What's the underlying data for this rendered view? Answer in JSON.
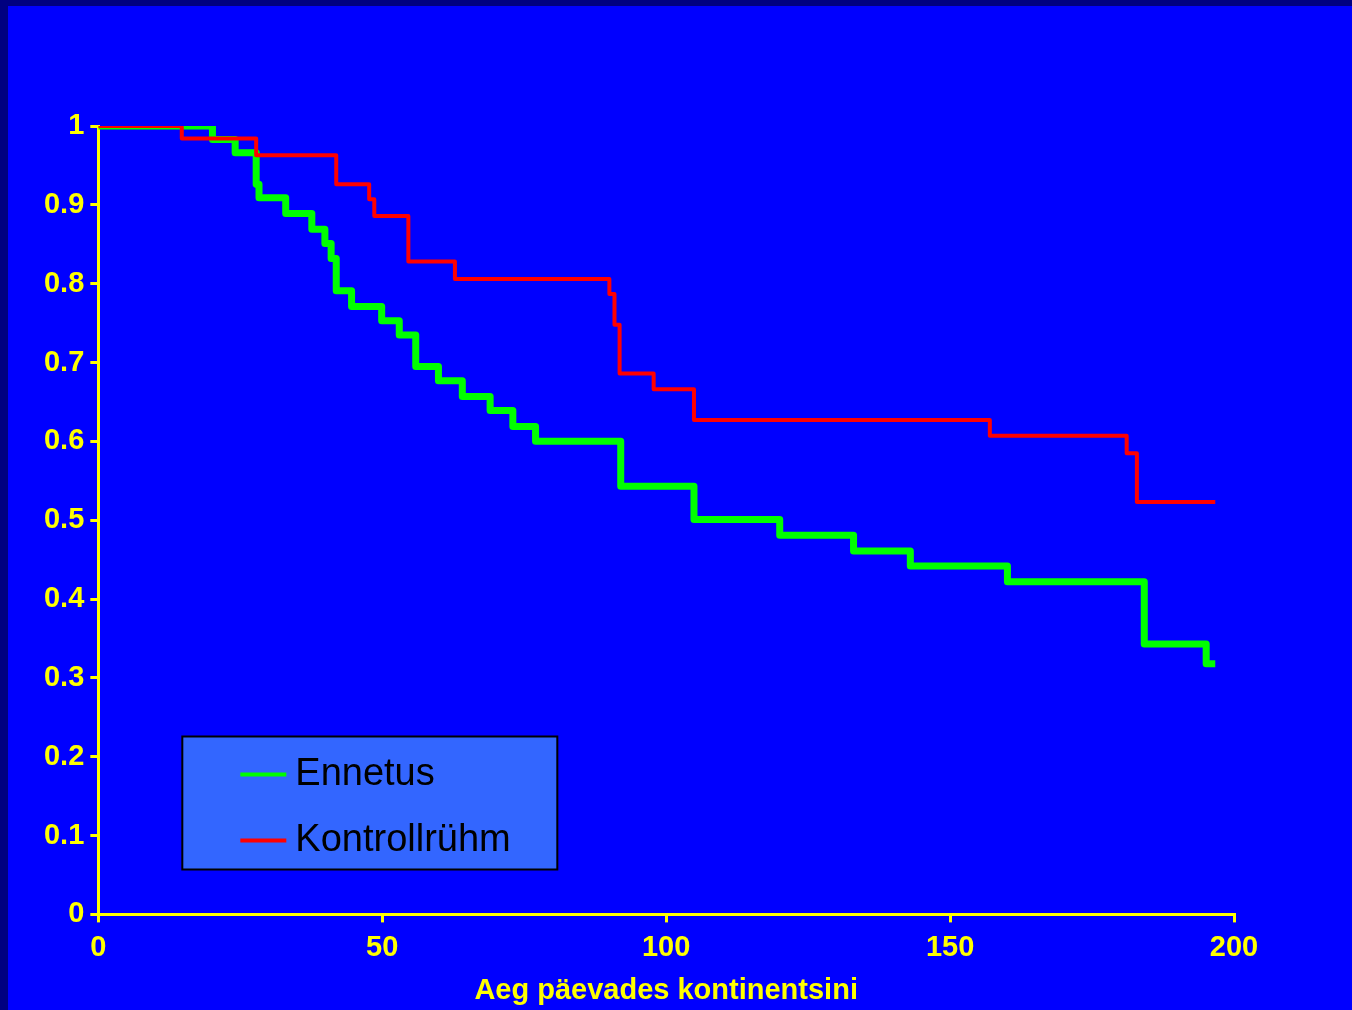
{
  "chart_data": {
    "type": "step",
    "xlabel": "Aeg päevades kontinentsini",
    "xlim": [
      0,
      200
    ],
    "xticks": [
      0,
      50,
      100,
      150,
      200
    ],
    "ylim": [
      0,
      1
    ],
    "yticks": [
      0,
      0.1,
      0.2,
      0.3,
      0.4,
      0.5,
      0.6,
      0.7,
      0.8,
      0.9,
      1
    ],
    "grid": false,
    "legend": "bottom left",
    "marker": "none",
    "line_style": "solid",
    "series": [
      {
        "name": "Ennetus",
        "color": "#00ff00",
        "x": [
          0,
          20.1,
          24.1,
          27.8,
          28.3,
          33,
          37.6,
          39.9,
          41,
          41.9,
          44.6,
          49.9,
          53,
          55.9,
          59.9,
          64.1,
          69,
          73,
          77,
          92,
          104.9,
          120,
          133,
          143,
          160.1,
          184.2,
          195.1,
          196.7
        ],
        "values": [
          1,
          0.983,
          0.966,
          0.926,
          0.909,
          0.889,
          0.869,
          0.851,
          0.832,
          0.791,
          0.771,
          0.753,
          0.735,
          0.695,
          0.677,
          0.657,
          0.639,
          0.619,
          0.6,
          0.543,
          0.501,
          0.481,
          0.461,
          0.442,
          0.422,
          0.343,
          0.318,
          0.318
        ]
      },
      {
        "name": "Kontrollrühm",
        "color": "#ff0000",
        "x": [
          0,
          14.7,
          27.8,
          41.9,
          47.7,
          48.6,
          54.6,
          62.8,
          90,
          90.9,
          91.8,
          97.8,
          104.9,
          157,
          181.1,
          182.9,
          196.7
        ],
        "values": [
          1,
          0.984,
          0.963,
          0.926,
          0.907,
          0.886,
          0.828,
          0.806,
          0.787,
          0.748,
          0.686,
          0.666,
          0.627,
          0.607,
          0.585,
          0.523,
          0.523
        ]
      }
    ]
  }
}
